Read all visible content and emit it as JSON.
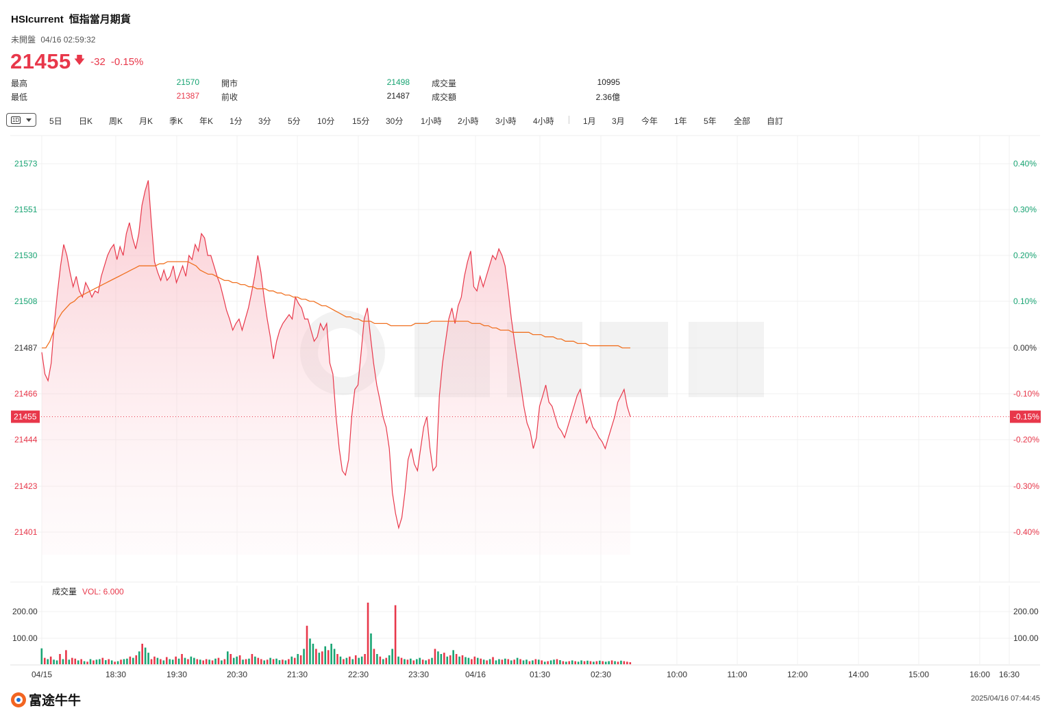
{
  "header": {
    "symbol": "HSIcurrent",
    "name": "恒指當月期貨",
    "status": "未開盤",
    "datetime": "04/16 02:59:32",
    "price": "21455",
    "change": "-32",
    "change_pct": "-0.15%"
  },
  "stats": {
    "high_label": "最高",
    "high": "21570",
    "low_label": "最低",
    "low": "21387",
    "open_label": "開市",
    "open": "21498",
    "prev_close_label": "前收",
    "prev_close": "21487",
    "volume_label": "成交量",
    "volume": "10995",
    "turnover_label": "成交額",
    "turnover": "2.36億"
  },
  "tabs": {
    "selected": "1D",
    "items": [
      "5日",
      "日K",
      "周K",
      "月K",
      "季K",
      "年K",
      "1分",
      "3分",
      "5分",
      "10分",
      "15分",
      "30分",
      "1小時",
      "2小時",
      "3小時",
      "4小時",
      "1月",
      "3月",
      "今年",
      "1年",
      "5年",
      "全部",
      "自訂"
    ]
  },
  "volume_panel": {
    "label": "成交量",
    "vol_readout": "VOL: 6.000"
  },
  "footer": {
    "brand": "富途牛牛",
    "timestamp": "2025/04/16 07:44:45"
  },
  "colors": {
    "up": "#18a473",
    "down": "#e8374a",
    "price_line": "#e8374a",
    "avg_line": "#f07020",
    "grid": "#f1f1f1"
  },
  "chart_data": {
    "type": "line",
    "time_labels": [
      "04/15",
      "18:30",
      "19:30",
      "20:30",
      "21:30",
      "22:30",
      "23:30",
      "04/16",
      "01:30",
      "02:30",
      "10:00",
      "11:00",
      "12:00",
      "14:00",
      "15:00",
      "16:00",
      "16:30"
    ],
    "y_ticks": [
      21573,
      21551,
      21530,
      21508,
      21487,
      21466,
      21444,
      21423,
      21401
    ],
    "y_ticks_pct": [
      "0.40%",
      "0.30%",
      "0.20%",
      "0.10%",
      "0.00%",
      "-0.10%",
      "-0.20%",
      "-0.30%",
      "-0.40%"
    ],
    "prev_close": 21487,
    "last_price": 21455,
    "last_price_label": "21455",
    "last_pct_label": "-0.15%",
    "ylim": [
      21395,
      21580
    ],
    "session_fraction_plotted": 0.61,
    "series": [
      {
        "values": [
          21485,
          21475,
          21472,
          21480,
          21498,
          21512,
          21525,
          21535,
          21530,
          21522,
          21515,
          21520,
          21513,
          21510,
          21517,
          21514,
          21510,
          21513,
          21512,
          21520,
          21525,
          21530,
          21533,
          21535,
          21528,
          21534,
          21530,
          21540,
          21545,
          21538,
          21533,
          21540,
          21553,
          21560,
          21565,
          21545,
          21527,
          21522,
          21518,
          21523,
          21518,
          21520,
          21525,
          21517,
          21521,
          21525,
          21520,
          21530,
          21528,
          21535,
          21532,
          21540,
          21538,
          21530,
          21530,
          21525,
          21520,
          21516,
          21510,
          21504,
          21500,
          21495,
          21498,
          21500,
          21495,
          21500,
          21505,
          21512,
          21520,
          21530,
          21522,
          21510,
          21500,
          21492,
          21482,
          21490,
          21495,
          21498,
          21500,
          21502,
          21500,
          21510,
          21507,
          21505,
          21500,
          21500,
          21495,
          21490,
          21492,
          21498,
          21495,
          21498,
          21480,
          21475,
          21455,
          21440,
          21430,
          21428,
          21435,
          21455,
          21468,
          21470,
          21485,
          21500,
          21505,
          21492,
          21480,
          21470,
          21463,
          21455,
          21450,
          21440,
          21420,
          21410,
          21403,
          21408,
          21420,
          21435,
          21440,
          21433,
          21430,
          21440,
          21450,
          21455,
          21440,
          21430,
          21432,
          21465,
          21480,
          21490,
          21500,
          21505,
          21498,
          21506,
          21510,
          21520,
          21527,
          21532,
          21515,
          21513,
          21520,
          21515,
          21520,
          21525,
          21530,
          21528,
          21533,
          21530,
          21525,
          21513,
          21500,
          21490,
          21480,
          21470,
          21460,
          21452,
          21448,
          21440,
          21445,
          21460,
          21465,
          21470,
          21462,
          21460,
          21455,
          21450,
          21448,
          21445,
          21450,
          21455,
          21460,
          21465,
          21468,
          21460,
          21452,
          21455,
          21450,
          21448,
          21445,
          21443,
          21440,
          21445,
          21450,
          21455,
          21462,
          21465,
          21468,
          21460,
          21455
        ]
      },
      {
        "values": [
          21487,
          21487,
          21490,
          21495,
          21500,
          21503,
          21505,
          21507,
          21508,
          21510,
          21511,
          21512,
          21513,
          21514,
          21515,
          21516,
          21517,
          21518,
          21519,
          21520,
          21521,
          21522,
          21523,
          21524,
          21525,
          21525,
          21525,
          21525,
          21525,
          21526,
          21526,
          21527,
          21527,
          21527,
          21527,
          21527,
          21527,
          21526,
          21525,
          21523,
          21522,
          21521,
          21521,
          21520,
          21519,
          21518,
          21518,
          21517,
          21517,
          21516,
          21516,
          21515,
          21515,
          21514,
          21514,
          21514,
          21513,
          21513,
          21512,
          21512,
          21511,
          21511,
          21510,
          21510,
          21509,
          21509,
          21508,
          21508,
          21507,
          21506,
          21506,
          21505,
          21504,
          21503,
          21502,
          21501,
          21501,
          21500,
          21500,
          21499,
          21499,
          21499,
          21498,
          21498,
          21498,
          21498,
          21497,
          21497,
          21497,
          21497,
          21497,
          21497,
          21498,
          21498,
          21498,
          21498,
          21499,
          21499,
          21499,
          21499,
          21499,
          21499,
          21499,
          21499,
          21499,
          21499,
          21498,
          21498,
          21498,
          21497,
          21497,
          21496,
          21496,
          21495,
          21495,
          21495,
          21494,
          21494,
          21494,
          21494,
          21494,
          21493,
          21493,
          21493,
          21492,
          21492,
          21492,
          21491,
          21491,
          21490,
          21490,
          21490,
          21489,
          21489,
          21489,
          21488,
          21488,
          21488,
          21488,
          21488,
          21488,
          21488,
          21488,
          21487,
          21487,
          21487
        ]
      }
    ],
    "volume_ticks": [
      "200.00",
      "100.00"
    ],
    "volume_ylim": [
      0,
      240
    ],
    "volume_values": [
      62,
      25,
      20,
      30,
      18,
      15,
      40,
      20,
      55,
      18,
      25,
      22,
      15,
      20,
      12,
      10,
      20,
      15,
      18,
      20,
      25,
      16,
      20,
      15,
      10,
      12,
      18,
      20,
      22,
      30,
      25,
      35,
      50,
      80,
      65,
      45,
      20,
      30,
      25,
      20,
      15,
      28,
      20,
      18,
      30,
      22,
      40,
      25,
      20,
      30,
      25,
      20,
      18,
      15,
      20,
      18,
      15,
      22,
      25,
      15,
      20,
      50,
      40,
      25,
      30,
      35,
      18,
      20,
      22,
      40,
      30,
      25,
      20,
      15,
      18,
      25,
      20,
      22,
      16,
      18,
      15,
      20,
      30,
      25,
      40,
      35,
      60,
      150,
      100,
      80,
      60,
      45,
      50,
      70,
      55,
      80,
      60,
      40,
      30,
      20,
      25,
      30,
      20,
      35,
      25,
      30,
      40,
      240,
      120,
      60,
      40,
      30,
      20,
      25,
      35,
      60,
      230,
      30,
      25,
      20,
      18,
      22,
      15,
      20,
      25,
      18,
      15,
      20,
      25,
      60,
      50,
      40,
      45,
      30,
      35,
      55,
      40,
      30,
      35,
      28,
      25,
      20,
      30,
      25,
      22,
      18,
      15,
      20,
      28,
      15,
      20,
      18,
      22,
      20,
      15,
      18,
      25,
      20,
      15,
      18,
      12,
      15,
      20,
      18,
      15,
      10,
      12,
      15,
      18,
      20,
      16,
      12,
      10,
      12,
      15,
      12,
      10,
      15,
      12,
      14,
      12,
      10,
      12,
      14,
      12,
      10,
      12,
      15,
      12,
      10,
      14,
      12,
      10,
      8
    ],
    "volume_up": [
      1,
      0,
      1,
      0,
      1,
      1,
      0,
      1,
      0,
      1,
      0,
      0,
      1,
      0,
      1,
      0,
      1,
      0,
      1,
      1,
      0,
      1,
      0,
      1,
      0,
      1,
      0,
      1,
      1,
      0,
      1,
      0,
      1,
      0,
      1,
      1,
      0,
      0,
      1,
      0,
      1,
      0,
      1,
      1,
      0,
      1,
      0,
      1,
      0,
      1,
      1,
      0,
      1,
      0,
      0,
      1,
      0,
      1,
      0,
      1,
      0,
      1,
      0,
      1,
      1,
      0,
      1,
      0,
      1,
      0,
      1,
      0,
      0,
      1,
      0,
      1,
      0,
      1,
      1,
      0,
      1,
      0,
      1,
      0,
      1,
      0,
      1,
      0,
      1,
      1,
      0,
      1,
      0,
      1,
      0,
      1,
      1,
      0,
      1,
      0,
      1,
      0,
      1,
      0,
      1,
      1,
      0,
      0,
      1,
      0,
      1,
      0,
      1,
      0,
      1,
      1,
      0,
      1,
      0,
      1,
      0,
      1,
      0,
      1,
      1,
      0,
      1,
      0,
      1,
      0,
      1,
      1,
      0,
      1,
      0,
      1,
      0,
      1,
      0,
      1,
      1,
      0,
      0,
      1,
      0,
      1,
      0,
      1,
      0,
      1,
      1,
      0,
      1,
      0,
      1,
      0,
      1,
      0,
      1,
      1,
      0,
      1,
      0,
      1,
      0,
      1,
      0,
      1,
      1,
      0,
      1,
      0,
      1,
      0,
      1,
      0,
      1,
      1,
      0,
      1,
      0,
      1,
      0,
      1,
      0,
      1,
      1,
      0,
      1,
      0,
      1,
      0
    ]
  }
}
